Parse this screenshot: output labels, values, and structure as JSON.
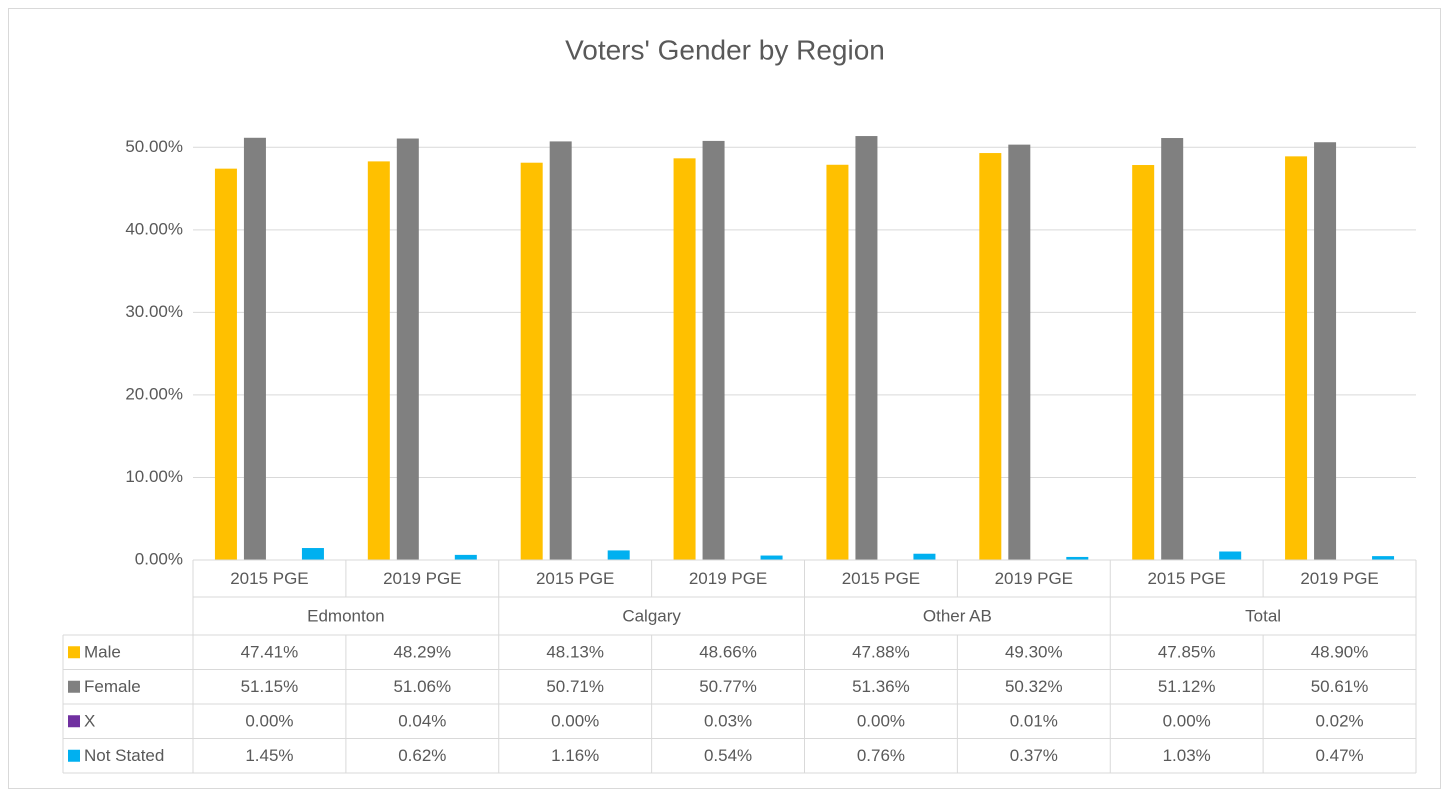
{
  "chart_data": {
    "type": "bar",
    "title": "Voters' Gender by Region",
    "categories": [
      "2015 PGE",
      "2019 PGE",
      "2015 PGE",
      "2019 PGE",
      "2015 PGE",
      "2019 PGE",
      "2015 PGE",
      "2019 PGE"
    ],
    "groups": [
      "Edmonton",
      "Calgary",
      "Other AB",
      "Total"
    ],
    "series": [
      {
        "name": "Male",
        "color": "#FFC000",
        "values": [
          47.41,
          48.29,
          48.13,
          48.66,
          47.88,
          49.3,
          47.85,
          48.9
        ],
        "value_labels": [
          "47.41%",
          "48.29%",
          "48.13%",
          "48.66%",
          "47.88%",
          "49.30%",
          "47.85%",
          "48.90%"
        ]
      },
      {
        "name": "Female",
        "color": "#808080",
        "values": [
          51.15,
          51.06,
          50.71,
          50.77,
          51.36,
          50.32,
          51.12,
          50.61
        ],
        "value_labels": [
          "51.15%",
          "51.06%",
          "50.71%",
          "50.77%",
          "51.36%",
          "50.32%",
          "51.12%",
          "50.61%"
        ]
      },
      {
        "name": "X",
        "color": "#7030A0",
        "values": [
          0.0,
          0.04,
          0.0,
          0.03,
          0.0,
          0.01,
          0.0,
          0.02
        ],
        "value_labels": [
          "0.00%",
          "0.04%",
          "0.00%",
          "0.03%",
          "0.00%",
          "0.01%",
          "0.00%",
          "0.02%"
        ]
      },
      {
        "name": "Not Stated",
        "color": "#00B0F0",
        "values": [
          1.45,
          0.62,
          1.16,
          0.54,
          0.76,
          0.37,
          1.03,
          0.47
        ],
        "value_labels": [
          "1.45%",
          "0.62%",
          "1.16%",
          "0.54%",
          "0.76%",
          "0.37%",
          "1.03%",
          "0.47%"
        ]
      }
    ],
    "ylim": [
      0,
      55
    ],
    "yticks": [
      {
        "value": 0,
        "label": "0.00%"
      },
      {
        "value": 10,
        "label": "10.00%"
      },
      {
        "value": 20,
        "label": "20.00%"
      },
      {
        "value": 30,
        "label": "30.00%"
      },
      {
        "value": 40,
        "label": "40.00%"
      },
      {
        "value": 50,
        "label": "50.00%"
      }
    ],
    "grid": true
  }
}
